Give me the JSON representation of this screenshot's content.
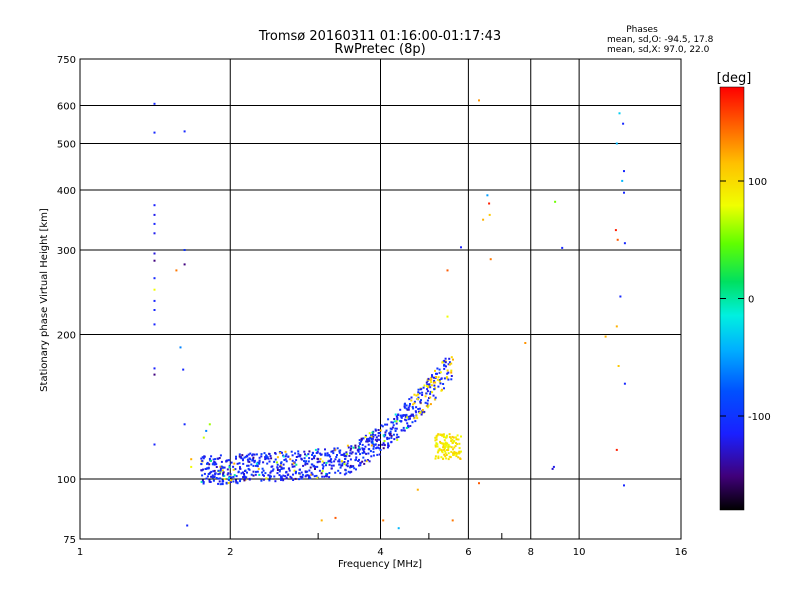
{
  "chart_data": {
    "type": "scatter",
    "title": "Tromsø 20160311 01:16:00-01:17:43",
    "subtitle": "RwPretec (8p)",
    "info": {
      "heading": "Phases",
      "line1": "mean, sd,O: -94.5, 17.8",
      "line2": "mean, sd,X:  97.0, 22.0"
    },
    "xlabel": "Frequency [MHz]",
    "ylabel": "Stationary phase Virtual Height [km]",
    "x_scale": "log",
    "y_scale": "log",
    "xlim": [
      1,
      16
    ],
    "ylim": [
      75,
      750
    ],
    "x_ticks": [
      "1",
      "2",
      "4",
      "6",
      "8",
      "10",
      "16"
    ],
    "x_tick_values": [
      1,
      2,
      4,
      6,
      8,
      10,
      16
    ],
    "y_ticks": [
      "75",
      "100",
      "200",
      "300",
      "400",
      "500",
      "600",
      "750"
    ],
    "y_tick_values": [
      75,
      100,
      200,
      300,
      400,
      500,
      600,
      750
    ],
    "grid": true,
    "colorbar": {
      "label": "[deg]",
      "range": [
        -180,
        180
      ],
      "ticks": [
        "100",
        "0",
        "-100"
      ],
      "tick_values": [
        100,
        0,
        -100
      ]
    },
    "points": [
      [
        1.41,
        605,
        -110
      ],
      [
        1.41,
        527,
        -110
      ],
      [
        1.62,
        530,
        -110
      ],
      [
        1.41,
        372,
        -115
      ],
      [
        1.41,
        355,
        -120
      ],
      [
        1.41,
        340,
        -112
      ],
      [
        1.41,
        325,
        -120
      ],
      [
        1.41,
        295,
        -125
      ],
      [
        1.41,
        285,
        -150
      ],
      [
        1.41,
        262,
        -110
      ],
      [
        1.41,
        248,
        80
      ],
      [
        1.41,
        235,
        -112
      ],
      [
        1.41,
        225,
        -110
      ],
      [
        1.41,
        210,
        -112
      ],
      [
        1.41,
        170,
        -115
      ],
      [
        1.41,
        165,
        -150
      ],
      [
        1.41,
        118,
        -112
      ],
      [
        1.56,
        272,
        140
      ],
      [
        1.62,
        280,
        -150
      ],
      [
        1.62,
        300,
        -100
      ],
      [
        1.59,
        188,
        -60
      ],
      [
        1.61,
        169,
        -110
      ],
      [
        1.62,
        130,
        -108
      ],
      [
        1.64,
        80,
        -110
      ],
      [
        1.67,
        110,
        120
      ],
      [
        1.67,
        106,
        80
      ],
      [
        1.77,
        122,
        70
      ],
      [
        1.79,
        126,
        -60
      ],
      [
        1.82,
        130,
        60
      ],
      [
        5.8,
        304,
        -115
      ],
      [
        5.45,
        272,
        150
      ],
      [
        5.45,
        218,
        80
      ],
      [
        6.3,
        615,
        130
      ],
      [
        6.55,
        390,
        -50
      ],
      [
        6.6,
        375,
        170
      ],
      [
        6.62,
        355,
        110
      ],
      [
        6.42,
        347,
        120
      ],
      [
        6.65,
        287,
        140
      ],
      [
        7.8,
        192,
        130
      ],
      [
        8.95,
        378,
        50
      ],
      [
        9.25,
        303,
        -110
      ],
      [
        8.85,
        105,
        -130
      ],
      [
        8.9,
        106,
        -120
      ],
      [
        12.05,
        578,
        -30
      ],
      [
        11.9,
        500,
        -40
      ],
      [
        12.25,
        550,
        -110
      ],
      [
        12.3,
        438,
        -110
      ],
      [
        12.2,
        418,
        -40
      ],
      [
        12.3,
        395,
        -110
      ],
      [
        11.85,
        330,
        170
      ],
      [
        11.95,
        315,
        150
      ],
      [
        12.35,
        310,
        -110
      ],
      [
        12.1,
        240,
        -110
      ],
      [
        11.9,
        208,
        120
      ],
      [
        12.0,
        172,
        110
      ],
      [
        11.3,
        198,
        120
      ],
      [
        12.35,
        158,
        -110
      ],
      [
        11.9,
        115,
        170
      ],
      [
        12.3,
        97,
        -110
      ],
      [
        3.05,
        82,
        120
      ],
      [
        3.25,
        83,
        150
      ],
      [
        4.05,
        82,
        140
      ],
      [
        4.35,
        79,
        -40
      ],
      [
        5.58,
        82,
        140
      ],
      [
        4.75,
        95,
        120
      ],
      [
        6.3,
        98,
        150
      ]
    ],
    "o_trace": {
      "description_free": true,
      "frequency_range": [
        1.75,
        5.6
      ],
      "height_range": [
        97,
        180
      ],
      "phase_range": [
        -140,
        130
      ]
    }
  }
}
